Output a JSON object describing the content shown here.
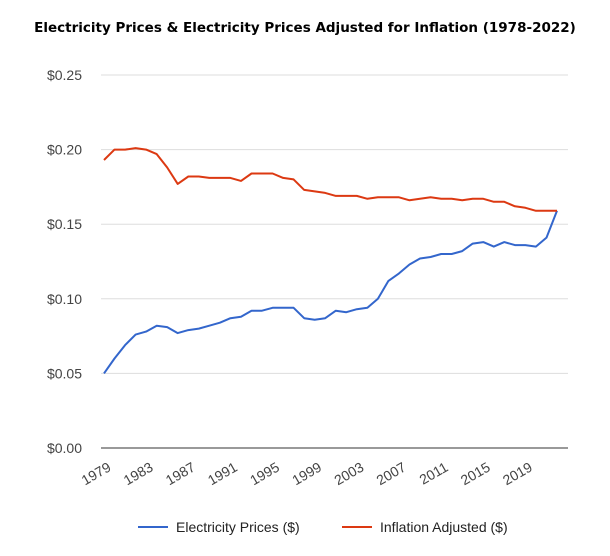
{
  "chart_data": {
    "type": "line",
    "title": "Electricity Prices & Electricity Prices Adjusted for Inflation (1978-2022)",
    "xlabel": "",
    "ylabel": "",
    "x": [
      1979,
      1980,
      1981,
      1982,
      1983,
      1984,
      1985,
      1986,
      1987,
      1988,
      1989,
      1990,
      1991,
      1992,
      1993,
      1994,
      1995,
      1996,
      1997,
      1998,
      1999,
      2000,
      2001,
      2002,
      2003,
      2004,
      2005,
      2006,
      2007,
      2008,
      2009,
      2010,
      2011,
      2012,
      2013,
      2014,
      2015,
      2016,
      2017,
      2018,
      2019,
      2020,
      2021,
      2022
    ],
    "x_ticks": [
      "1979",
      "1983",
      "1987",
      "1991",
      "1995",
      "1999",
      "2003",
      "2007",
      "2011",
      "2015",
      "2019"
    ],
    "y_ticks": [
      "$0.00",
      "$0.05",
      "$0.10",
      "$0.15",
      "$0.20",
      "$0.25"
    ],
    "ylim": [
      0,
      0.25
    ],
    "grid": true,
    "legend_position": "bottom",
    "series": [
      {
        "name": "Electricity Prices ($)",
        "color": "#3366cc",
        "values": [
          0.05,
          0.06,
          0.069,
          0.076,
          0.078,
          0.082,
          0.081,
          0.077,
          0.079,
          0.08,
          0.082,
          0.084,
          0.087,
          0.088,
          0.092,
          0.092,
          0.094,
          0.094,
          0.094,
          0.087,
          0.086,
          0.087,
          0.092,
          0.091,
          0.093,
          0.094,
          0.1,
          0.112,
          0.117,
          0.123,
          0.127,
          0.128,
          0.13,
          0.13,
          0.132,
          0.137,
          0.138,
          0.135,
          0.138,
          0.136,
          0.136,
          0.135,
          0.141,
          0.159
        ]
      },
      {
        "name": "Inflation Adjusted ($)",
        "color": "#dc3912",
        "values": [
          0.193,
          0.2,
          0.2,
          0.201,
          0.2,
          0.197,
          0.188,
          0.177,
          0.182,
          0.182,
          0.181,
          0.181,
          0.181,
          0.179,
          0.184,
          0.184,
          0.184,
          0.181,
          0.18,
          0.173,
          0.172,
          0.171,
          0.169,
          0.169,
          0.169,
          0.167,
          0.168,
          0.168,
          0.168,
          0.166,
          0.167,
          0.168,
          0.167,
          0.167,
          0.166,
          0.167,
          0.167,
          0.165,
          0.165,
          0.162,
          0.161,
          0.159,
          0.159,
          0.159
        ]
      }
    ]
  }
}
